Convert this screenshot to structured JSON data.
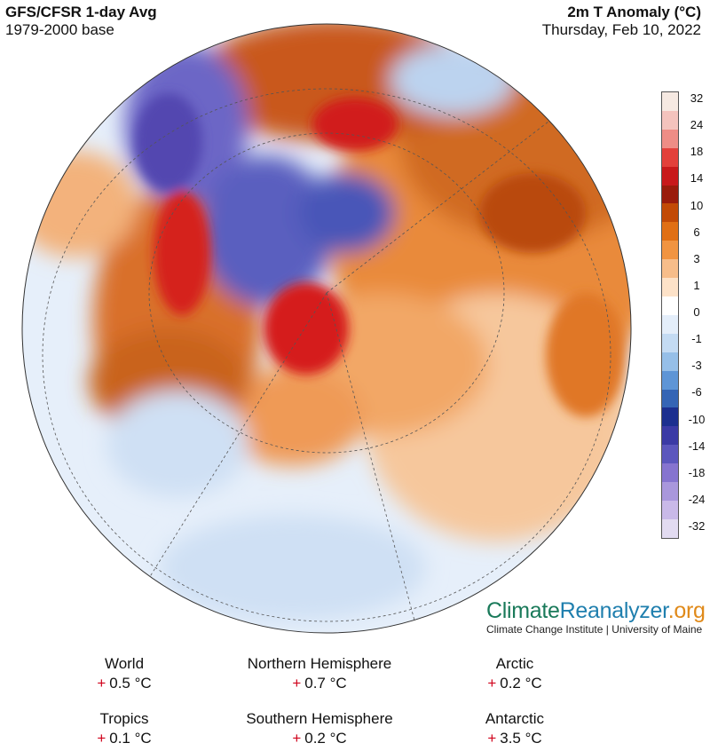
{
  "header": {
    "left_title": "GFS/CFSR 1-day Avg",
    "left_subtitle": "1979-2000 base",
    "right_title": "2m T Anomaly (°C)",
    "right_subtitle": "Thursday, Feb 10, 2022"
  },
  "colorbar": {
    "labels": [
      "32",
      "24",
      "18",
      "14",
      "10",
      "6",
      "3",
      "1",
      "0",
      "-1",
      "-3",
      "-6",
      "-10",
      "-14",
      "-18",
      "-24",
      "-32"
    ],
    "colors": [
      "#f6e9e2",
      "#f4c3bd",
      "#ee8d86",
      "#e3403b",
      "#c8191b",
      "#9a1c0c",
      "#c24a06",
      "#e06f14",
      "#f19441",
      "#f7bd8a",
      "#fde2c8",
      "#ffffff",
      "#e4eefa",
      "#c4dbf3",
      "#96bfe8",
      "#5e95d6",
      "#3565b5",
      "#1c2f8f",
      "#3b3aa5",
      "#5c57bd",
      "#8674cf",
      "#a997dc",
      "#c9b9e8",
      "#e2dbf1"
    ]
  },
  "brand": {
    "part1": "Climate",
    "part2": "Reanalyzer",
    "part3": ".org",
    "affiliation": "Climate Change Institute | University of Maine"
  },
  "stats": [
    {
      "label": "World",
      "sign": "+",
      "value": "0.5 °C"
    },
    {
      "label": "Northern Hemisphere",
      "sign": "+",
      "value": "0.7 °C"
    },
    {
      "label": "Arctic",
      "sign": "+",
      "value": "0.2 °C"
    },
    {
      "label": "Tropics",
      "sign": "+",
      "value": "0.1 °C"
    },
    {
      "label": "Southern Hemisphere",
      "sign": "+",
      "value": "0.2 °C"
    },
    {
      "label": "Antarctic",
      "sign": "+",
      "value": "3.5 °C"
    }
  ]
}
